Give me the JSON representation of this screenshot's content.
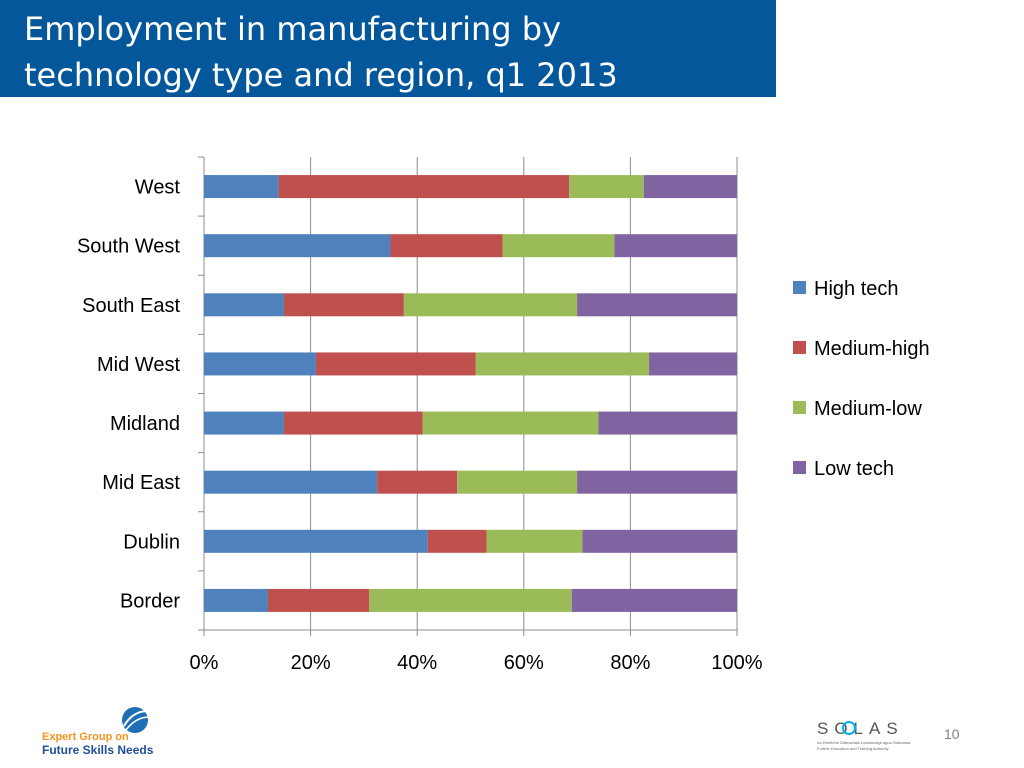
{
  "slide": {
    "title": "Employment in manufacturing by\ntechnology type and region, q1 2013",
    "page_number": "10",
    "footer_left_logo_text": [
      "Expert Group on",
      "Future Skills Needs"
    ],
    "footer_right_logo_text": "SOLAS",
    "footer_right_logo_subtext": [
      "An tSeirbhís Oideachais Leanúnaigh agus Scileanna",
      "Further Education and Training Authority"
    ],
    "tile_colors": [
      "#00aeef",
      "#8dc63f",
      "#ed1c24",
      "#f7941d"
    ],
    "tile_icons": [
      "rectangle-outline-icon",
      "circle-outline-icon",
      "hexagon-outline-icon",
      "triangle-outline-icon"
    ]
  },
  "chart_data": {
    "type": "bar",
    "orientation": "horizontal",
    "stacked": "percent",
    "title": "",
    "xlabel": "",
    "ylabel": "",
    "categories": [
      "West",
      "South West",
      "South East",
      "Mid West",
      "Midland",
      "Mid East",
      "Dublin",
      "Border"
    ],
    "series": [
      {
        "name": "High tech",
        "color": "#4f81bd",
        "values": [
          14,
          35,
          15,
          21,
          15,
          32.5,
          42,
          12
        ]
      },
      {
        "name": "Medium-high",
        "color": "#c0504d",
        "values": [
          54.5,
          21,
          22.5,
          30,
          26,
          15,
          11,
          19
        ]
      },
      {
        "name": "Medium-low",
        "color": "#9bbb59",
        "values": [
          14,
          21,
          32.5,
          32.5,
          33,
          22.5,
          18,
          38
        ]
      },
      {
        "name": "Low tech",
        "color": "#8064a2",
        "values": [
          17.5,
          23,
          30,
          16.5,
          26,
          30,
          29,
          31
        ]
      }
    ],
    "xlim": [
      0,
      100
    ],
    "x_ticks": [
      "0%",
      "20%",
      "40%",
      "60%",
      "80%",
      "100%"
    ],
    "grid": "vertical",
    "legend": "right"
  }
}
